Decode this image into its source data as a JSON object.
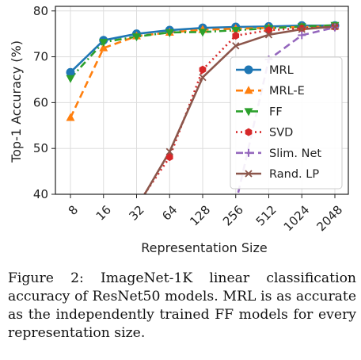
{
  "chart_data": {
    "type": "line",
    "xlabel": "Representation Size",
    "ylabel": "Top-1 Accuracy (%)",
    "x": [
      "8",
      "16",
      "32",
      "64",
      "128",
      "256",
      "512",
      "1024",
      "2048"
    ],
    "yticks": [
      "40",
      "50",
      "60",
      "70",
      "80"
    ],
    "ylim": [
      40,
      81
    ],
    "grid": true,
    "legend_position": "lower-right",
    "series": [
      {
        "name": "MRL",
        "color": "#1f77b4",
        "style": "solid",
        "marker": "circle",
        "values": [
          66.6,
          73.6,
          75.0,
          75.8,
          76.3,
          76.5,
          76.6,
          76.8,
          76.8
        ]
      },
      {
        "name": "MRL-E",
        "color": "#ff7f0e",
        "style": "dashed",
        "marker": "triangle-up",
        "values": [
          56.7,
          71.9,
          74.5,
          75.3,
          75.9,
          76.1,
          76.3,
          76.5,
          76.6
        ]
      },
      {
        "name": "FF",
        "color": "#2ca02c",
        "style": "dashdot",
        "marker": "triangle-down",
        "values": [
          65.3,
          73.2,
          74.4,
          75.3,
          75.4,
          75.8,
          76.2,
          76.6,
          76.9
        ]
      },
      {
        "name": "SVD",
        "color": "#d62728",
        "style": "dotted",
        "marker": "hexagon",
        "values": [
          null,
          null,
          37.5,
          48.1,
          67.2,
          74.6,
          75.8,
          76.2,
          76.5
        ]
      },
      {
        "name": "Slim. Net",
        "color": "#9467bd",
        "style": "dashed",
        "marker": "plus",
        "values": [
          null,
          null,
          null,
          null,
          null,
          38.0,
          69.4,
          74.7,
          76.4
        ]
      },
      {
        "name": "Rand. LP",
        "color": "#8c564b",
        "style": "solid",
        "marker": "x",
        "values": [
          null,
          null,
          37.0,
          49.3,
          65.5,
          72.4,
          74.8,
          76.0,
          76.6
        ]
      }
    ]
  },
  "caption": "Figure 2: ImageNet-1K linear classification accuracy of ResNet50 models. MRL is as accurate as the independently trained FF models for every representation size."
}
